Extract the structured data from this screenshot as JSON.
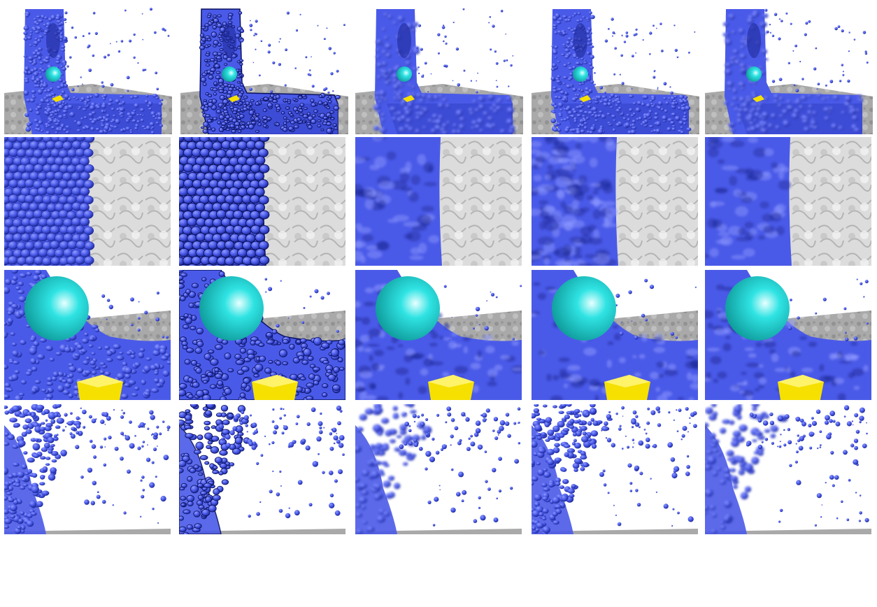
{
  "figure": {
    "rows": [
      {
        "content": "overview",
        "count": 5
      },
      {
        "content": "closeup-wall",
        "count": 5
      },
      {
        "content": "closeup-sphere",
        "count": 5
      },
      {
        "content": "closeup-spray",
        "count": 5
      }
    ],
    "columns": [
      {
        "style": "raw-particles"
      },
      {
        "style": "raw-particles-outlined"
      },
      {
        "style": "smooth-surface"
      },
      {
        "style": "medium-smooth-surface"
      },
      {
        "style": "smooth-surface-2"
      }
    ]
  },
  "colors": {
    "fluid": "#4a5ae8",
    "fluid_dark": "#1e2a9a",
    "fluid_light": "#8f9aff",
    "sphere": "#2fe3e3",
    "sphere_light": "#e8ffff",
    "floor": "#a9a9a9",
    "floor_dark": "#7b7b7b",
    "obstacle": "#f5e000",
    "background": "#ffffff"
  }
}
